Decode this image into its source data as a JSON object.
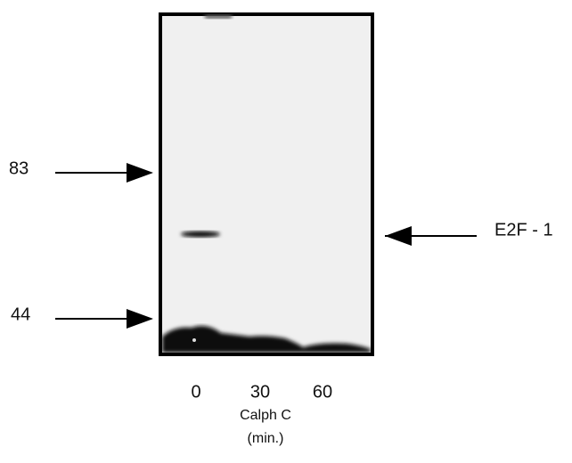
{
  "markers": [
    {
      "label": "83"
    },
    {
      "label": "44"
    }
  ],
  "band_label": "E2F - 1",
  "lanes": [
    "0",
    "30",
    "60"
  ],
  "axis_label": "Calph C",
  "axis_unit": "(min.)"
}
